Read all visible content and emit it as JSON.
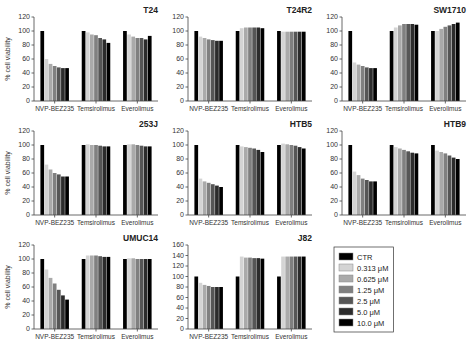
{
  "chart_data": [
    {
      "type": "bar",
      "title": "T24",
      "y_label": "% cell viability",
      "categories": [
        "NVP-BEZ235",
        "Temsirolimus",
        "Everolimus"
      ],
      "series": [
        {
          "name": "CTR",
          "color": "#000000",
          "values": [
            100,
            100,
            100
          ]
        },
        {
          "name": "0.313 μM",
          "color": "#d4d4d4",
          "values": [
            60,
            98,
            95
          ]
        },
        {
          "name": "0.625 μM",
          "color": "#aaaaaa",
          "values": [
            53,
            95,
            92
          ]
        },
        {
          "name": "1.25 μM",
          "color": "#808080",
          "values": [
            50,
            94,
            90
          ]
        },
        {
          "name": "2.5 μM",
          "color": "#565656",
          "values": [
            48,
            90,
            90
          ]
        },
        {
          "name": "5.0 μM",
          "color": "#2c2c2c",
          "values": [
            47,
            88,
            88
          ]
        },
        {
          "name": "10.0 μM",
          "color": "#000000",
          "values": [
            47,
            83,
            93
          ]
        }
      ],
      "ylim": [
        0,
        120
      ],
      "yticks": [
        0,
        20,
        40,
        60,
        80,
        100,
        120
      ],
      "grid": false
    },
    {
      "type": "bar",
      "title": "T24R2",
      "categories": [
        "NVP-BEZ235",
        "Temsirolimus",
        "Everolimus"
      ],
      "series": [
        {
          "name": "CTR",
          "color": "#000000",
          "values": [
            100,
            100,
            100
          ]
        },
        {
          "name": "0.313 μM",
          "color": "#d4d4d4",
          "values": [
            92,
            104,
            99
          ]
        },
        {
          "name": "0.625 μM",
          "color": "#aaaaaa",
          "values": [
            90,
            105,
            99
          ]
        },
        {
          "name": "1.25 μM",
          "color": "#808080",
          "values": [
            88,
            105,
            99
          ]
        },
        {
          "name": "2.5 μM",
          "color": "#565656",
          "values": [
            87,
            105,
            99
          ]
        },
        {
          "name": "5.0 μM",
          "color": "#2c2c2c",
          "values": [
            86,
            105,
            99
          ]
        },
        {
          "name": "10.0 μM",
          "color": "#000000",
          "values": [
            86,
            104,
            99
          ]
        }
      ],
      "ylim": [
        0,
        120
      ],
      "yticks": [
        0,
        20,
        40,
        60,
        80,
        100,
        120
      ],
      "grid": false
    },
    {
      "type": "bar",
      "title": "SW1710",
      "categories": [
        "NVP-BEZ235",
        "Temsirolimus",
        "Everolimus"
      ],
      "series": [
        {
          "name": "CTR",
          "color": "#000000",
          "values": [
            100,
            100,
            100
          ]
        },
        {
          "name": "0.313 μM",
          "color": "#d4d4d4",
          "values": [
            55,
            105,
            100
          ]
        },
        {
          "name": "0.625 μM",
          "color": "#aaaaaa",
          "values": [
            52,
            108,
            103
          ]
        },
        {
          "name": "1.25 μM",
          "color": "#808080",
          "values": [
            50,
            110,
            106
          ]
        },
        {
          "name": "2.5 μM",
          "color": "#565656",
          "values": [
            48,
            110,
            108
          ]
        },
        {
          "name": "5.0 μM",
          "color": "#2c2c2c",
          "values": [
            47,
            110,
            110
          ]
        },
        {
          "name": "10.0 μM",
          "color": "#000000",
          "values": [
            47,
            109,
            112
          ]
        }
      ],
      "ylim": [
        0,
        120
      ],
      "yticks": [
        0,
        20,
        40,
        60,
        80,
        100,
        120
      ],
      "grid": false
    },
    {
      "type": "bar",
      "title": "253J",
      "y_label": "% cell viability",
      "categories": [
        "NVP-BEZ235",
        "Temsirolimus",
        "Everolimus"
      ],
      "series": [
        {
          "name": "CTR",
          "color": "#000000",
          "values": [
            100,
            100,
            100
          ]
        },
        {
          "name": "0.313 μM",
          "color": "#d4d4d4",
          "values": [
            72,
            101,
            101
          ]
        },
        {
          "name": "0.625 μM",
          "color": "#aaaaaa",
          "values": [
            65,
            100,
            101
          ]
        },
        {
          "name": "1.25 μM",
          "color": "#808080",
          "values": [
            60,
            100,
            100
          ]
        },
        {
          "name": "2.5 μM",
          "color": "#565656",
          "values": [
            58,
            99,
            99
          ]
        },
        {
          "name": "5.0 μM",
          "color": "#2c2c2c",
          "values": [
            55,
            98,
            98
          ]
        },
        {
          "name": "10.0 μM",
          "color": "#000000",
          "values": [
            55,
            98,
            98
          ]
        }
      ],
      "ylim": [
        0,
        120
      ],
      "yticks": [
        0,
        20,
        40,
        60,
        80,
        100,
        120
      ],
      "grid": false
    },
    {
      "type": "bar",
      "title": "HTB5",
      "categories": [
        "NVP-BEZ235",
        "Temsirolimus",
        "Everolimus"
      ],
      "series": [
        {
          "name": "CTR",
          "color": "#000000",
          "values": [
            100,
            100,
            100
          ]
        },
        {
          "name": "0.313 μM",
          "color": "#d4d4d4",
          "values": [
            52,
            98,
            102
          ]
        },
        {
          "name": "0.625 μM",
          "color": "#aaaaaa",
          "values": [
            48,
            97,
            101
          ]
        },
        {
          "name": "1.25 μM",
          "color": "#808080",
          "values": [
            46,
            96,
            100
          ]
        },
        {
          "name": "2.5 μM",
          "color": "#565656",
          "values": [
            44,
            95,
            99
          ]
        },
        {
          "name": "5.0 μM",
          "color": "#2c2c2c",
          "values": [
            42,
            93,
            97
          ]
        },
        {
          "name": "10.0 μM",
          "color": "#000000",
          "values": [
            40,
            90,
            95
          ]
        }
      ],
      "ylim": [
        0,
        120
      ],
      "yticks": [
        0,
        20,
        40,
        60,
        80,
        100,
        120
      ],
      "grid": false
    },
    {
      "type": "bar",
      "title": "HTB9",
      "categories": [
        "NVP-BEZ235",
        "Temsirolimus",
        "Everolimus"
      ],
      "series": [
        {
          "name": "CTR",
          "color": "#000000",
          "values": [
            100,
            100,
            100
          ]
        },
        {
          "name": "0.313 μM",
          "color": "#d4d4d4",
          "values": [
            62,
            97,
            92
          ]
        },
        {
          "name": "0.625 μM",
          "color": "#aaaaaa",
          "values": [
            57,
            95,
            90
          ]
        },
        {
          "name": "1.25 μM",
          "color": "#808080",
          "values": [
            52,
            93,
            88
          ]
        },
        {
          "name": "2.5 μM",
          "color": "#565656",
          "values": [
            50,
            91,
            85
          ]
        },
        {
          "name": "5.0 μM",
          "color": "#2c2c2c",
          "values": [
            48,
            89,
            82
          ]
        },
        {
          "name": "10.0 μM",
          "color": "#000000",
          "values": [
            48,
            88,
            80
          ]
        }
      ],
      "ylim": [
        0,
        120
      ],
      "yticks": [
        0,
        20,
        40,
        60,
        80,
        100,
        120
      ],
      "grid": false
    },
    {
      "type": "bar",
      "title": "UMUC14",
      "y_label": "% cell viability",
      "categories": [
        "NVP-BEZ235",
        "Temsirolimus",
        "Everolimus"
      ],
      "series": [
        {
          "name": "CTR",
          "color": "#000000",
          "values": [
            100,
            100,
            100
          ]
        },
        {
          "name": "0.313 μM",
          "color": "#d4d4d4",
          "values": [
            85,
            105,
            101
          ]
        },
        {
          "name": "0.625 μM",
          "color": "#aaaaaa",
          "values": [
            73,
            105,
            101
          ]
        },
        {
          "name": "1.25 μM",
          "color": "#808080",
          "values": [
            65,
            105,
            100
          ]
        },
        {
          "name": "2.5 μM",
          "color": "#565656",
          "values": [
            56,
            104,
            100
          ]
        },
        {
          "name": "5.0 μM",
          "color": "#2c2c2c",
          "values": [
            48,
            103,
            100
          ]
        },
        {
          "name": "10.0 μM",
          "color": "#000000",
          "values": [
            42,
            103,
            100
          ]
        }
      ],
      "ylim": [
        0,
        120
      ],
      "yticks": [
        0,
        20,
        40,
        60,
        80,
        100,
        120
      ],
      "grid": false
    },
    {
      "type": "bar",
      "title": "J82",
      "categories": [
        "NVP-BEZ235",
        "Temsirolimus",
        "Everolimus"
      ],
      "series": [
        {
          "name": "CTR",
          "color": "#000000",
          "values": [
            100,
            100,
            100
          ]
        },
        {
          "name": "0.313 μM",
          "color": "#d4d4d4",
          "values": [
            88,
            138,
            138
          ]
        },
        {
          "name": "0.625 μM",
          "color": "#aaaaaa",
          "values": [
            84,
            136,
            138
          ]
        },
        {
          "name": "1.25 μM",
          "color": "#808080",
          "values": [
            82,
            136,
            138
          ]
        },
        {
          "name": "2.5 μM",
          "color": "#565656",
          "values": [
            80,
            135,
            138
          ]
        },
        {
          "name": "5.0 μM",
          "color": "#2c2c2c",
          "values": [
            80,
            135,
            138
          ]
        },
        {
          "name": "10.0 μM",
          "color": "#000000",
          "values": [
            80,
            134,
            138
          ]
        }
      ],
      "ylim": [
        0,
        160
      ],
      "yticks": [
        0,
        20,
        40,
        60,
        80,
        100,
        120,
        140,
        160
      ],
      "grid": false
    }
  ]
}
